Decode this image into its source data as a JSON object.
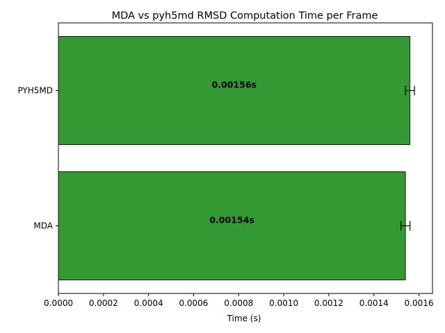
{
  "chart_data": {
    "type": "bar",
    "orientation": "horizontal",
    "title": "MDA vs pyh5md RMSD Computation Time per Frame",
    "xlabel": "Time (s)",
    "ylabel": "",
    "xlim": [
      0,
      0.00166
    ],
    "xticks": [
      "0.0000",
      "0.0002",
      "0.0004",
      "0.0006",
      "0.0008",
      "0.0010",
      "0.0012",
      "0.0014",
      "0.0016"
    ],
    "xtick_values": [
      0,
      0.0002,
      0.0004,
      0.0006,
      0.0008,
      0.001,
      0.0012,
      0.0014,
      0.0016
    ],
    "categories": [
      "MDA",
      "PYH5MD"
    ],
    "values": [
      0.00154,
      0.00156
    ],
    "errors": [
      2e-05,
      2e-05
    ],
    "data_labels": [
      "0.00154s",
      "0.00156s"
    ],
    "grid": false,
    "bar_color": "#339933",
    "bar_edge_color": "#1a1a1a"
  }
}
